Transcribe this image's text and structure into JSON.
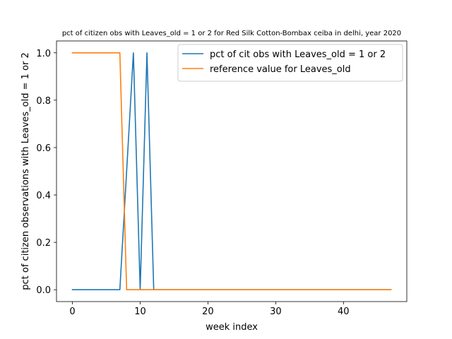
{
  "chart_data": {
    "type": "line",
    "title": "pct of citizen obs with Leaves_old = 1 or 2 for Red Silk Cotton-Bombax ceiba in delhi, year 2020",
    "xlabel": "week index",
    "ylabel": "pct of citizen observations with Leaves_old = 1 or 2",
    "xlim": [
      -2.35,
      49.35
    ],
    "ylim": [
      -0.05,
      1.05
    ],
    "xticks": [
      0,
      10,
      20,
      30,
      40
    ],
    "yticks": [
      0.0,
      0.2,
      0.4,
      0.6,
      0.8,
      1.0
    ],
    "xtick_labels": [
      "0",
      "10",
      "20",
      "30",
      "40"
    ],
    "ytick_labels": [
      "0.0",
      "0.2",
      "0.4",
      "0.6",
      "0.8",
      "1.0"
    ],
    "grid": false,
    "legend_position": "top-right",
    "series": [
      {
        "name": "pct of cit obs with Leaves_old = 1 or 2",
        "color": "#1f77b4",
        "x": [
          0,
          1,
          2,
          3,
          4,
          5,
          6,
          7,
          8,
          9,
          10,
          11,
          12,
          13,
          14,
          15,
          16,
          17,
          18,
          19,
          20,
          21,
          22,
          23,
          24,
          25,
          26,
          27,
          28,
          29,
          30,
          31,
          32,
          33,
          34,
          35,
          36,
          37,
          38,
          39,
          40,
          41,
          42,
          43,
          44,
          45,
          46,
          47
        ],
        "y": [
          0,
          0,
          0,
          0,
          0,
          0,
          0,
          0,
          0.5,
          1,
          0,
          1,
          0,
          0,
          0,
          0,
          0,
          0,
          0,
          0,
          0,
          0,
          0,
          0,
          0,
          0,
          0,
          0,
          0,
          0,
          0,
          0,
          0,
          0,
          0,
          0,
          0,
          0,
          0,
          0,
          0,
          0,
          0,
          0,
          0,
          0,
          0,
          0
        ]
      },
      {
        "name": "reference value for Leaves_old",
        "color": "#ff7f0e",
        "x": [
          0,
          1,
          2,
          3,
          4,
          5,
          6,
          7,
          8,
          9,
          10,
          11,
          12,
          13,
          14,
          15,
          16,
          17,
          18,
          19,
          20,
          21,
          22,
          23,
          24,
          25,
          26,
          27,
          28,
          29,
          30,
          31,
          32,
          33,
          34,
          35,
          36,
          37,
          38,
          39,
          40,
          41,
          42,
          43,
          44,
          45,
          46,
          47
        ],
        "y": [
          1,
          1,
          1,
          1,
          1,
          1,
          1,
          1,
          0,
          0,
          0,
          0,
          0,
          0,
          0,
          0,
          0,
          0,
          0,
          0,
          0,
          0,
          0,
          0,
          0,
          0,
          0,
          0,
          0,
          0,
          0,
          0,
          0,
          0,
          0,
          0,
          0,
          0,
          0,
          0,
          0,
          0,
          0,
          0,
          0,
          0,
          0,
          0
        ]
      }
    ]
  }
}
